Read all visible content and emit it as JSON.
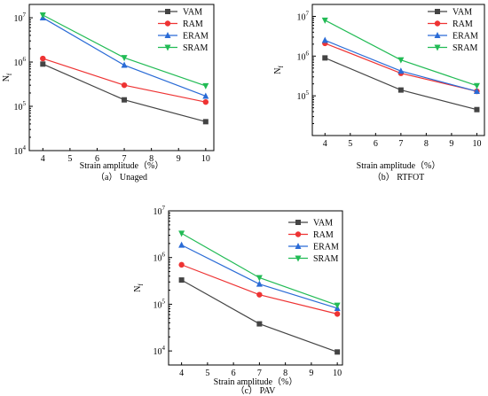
{
  "chart_data": [
    {
      "type": "line",
      "caption": "（a） Unaged",
      "xlabel": "Strain amplitude（%）",
      "ylabel": "N",
      "ylabel_sub": "f",
      "x_scale": "linear",
      "y_scale": "log",
      "xlim": [
        3.5,
        10.3
      ],
      "ylim": [
        10000,
        20000000
      ],
      "xticks": [
        4,
        5,
        6,
        7,
        8,
        9,
        10
      ],
      "yticks": [
        10000,
        100000,
        1000000,
        10000000
      ],
      "ytick_labels": [
        [
          "10",
          "4"
        ],
        [
          "10",
          "5"
        ],
        [
          "10",
          "6"
        ],
        [
          "10",
          "7"
        ]
      ],
      "legend_position": "top-right",
      "x": [
        4,
        7,
        10
      ],
      "series": [
        {
          "name": "VAM",
          "color": "#444444",
          "marker": "square",
          "values": [
            900000,
            140000,
            45000
          ]
        },
        {
          "name": "RAM",
          "color": "#ee3333",
          "marker": "circle",
          "values": [
            1200000,
            300000,
            125000
          ]
        },
        {
          "name": "ERAM",
          "color": "#2a6bd6",
          "marker": "triangle-up",
          "values": [
            10000000,
            850000,
            170000
          ]
        },
        {
          "name": "SRAM",
          "color": "#22bb55",
          "marker": "triangle-down",
          "values": [
            11500000,
            1250000,
            290000
          ]
        }
      ]
    },
    {
      "type": "line",
      "caption": "（b） RTFOT",
      "xlabel": "Strain amplitude（%）",
      "ylabel": "N",
      "ylabel_sub": "f",
      "x_scale": "linear",
      "y_scale": "log",
      "xlim": [
        3.5,
        10.3
      ],
      "ylim": [
        10000,
        20000000
      ],
      "xticks": [
        4,
        5,
        6,
        7,
        8,
        9,
        10
      ],
      "yticks": [
        100000,
        1000000,
        10000000
      ],
      "ytick_labels": [
        [
          "10",
          "5"
        ],
        [
          "10",
          "6"
        ],
        [
          "10",
          "7"
        ]
      ],
      "legend_position": "top-right",
      "x": [
        4,
        7,
        10
      ],
      "series": [
        {
          "name": "VAM",
          "color": "#444444",
          "marker": "square",
          "values": [
            900000,
            140000,
            45000
          ]
        },
        {
          "name": "RAM",
          "color": "#ee3333",
          "marker": "circle",
          "values": [
            2100000,
            370000,
            130000
          ]
        },
        {
          "name": "ERAM",
          "color": "#2a6bd6",
          "marker": "triangle-up",
          "values": [
            2500000,
            420000,
            130000
          ]
        },
        {
          "name": "SRAM",
          "color": "#22bb55",
          "marker": "triangle-down",
          "values": [
            8000000,
            800000,
            180000
          ]
        }
      ]
    },
    {
      "type": "line",
      "caption": "（c） PAV",
      "xlabel": "Strain amplitude（%）",
      "ylabel": "N",
      "ylabel_sub": "f",
      "x_scale": "linear",
      "y_scale": "log",
      "xlim": [
        3.5,
        10.2
      ],
      "ylim": [
        5000,
        10000000
      ],
      "xticks": [
        4,
        5,
        6,
        7,
        8,
        9,
        10
      ],
      "yticks": [
        10000,
        100000,
        1000000,
        10000000
      ],
      "ytick_labels": [
        [
          "10",
          "4"
        ],
        [
          "10",
          "5"
        ],
        [
          "10",
          "6"
        ],
        [
          "10",
          "7"
        ]
      ],
      "legend_position": "top-right",
      "x": [
        4,
        7,
        10
      ],
      "series": [
        {
          "name": "VAM",
          "color": "#444444",
          "marker": "square",
          "values": [
            330000,
            38000,
            9500
          ]
        },
        {
          "name": "RAM",
          "color": "#ee3333",
          "marker": "circle",
          "values": [
            700000,
            160000,
            62000
          ]
        },
        {
          "name": "ERAM",
          "color": "#2a6bd6",
          "marker": "triangle-up",
          "values": [
            1850000,
            270000,
            82000
          ]
        },
        {
          "name": "SRAM",
          "color": "#22bb55",
          "marker": "triangle-down",
          "values": [
            3300000,
            370000,
            95000
          ]
        }
      ]
    }
  ]
}
